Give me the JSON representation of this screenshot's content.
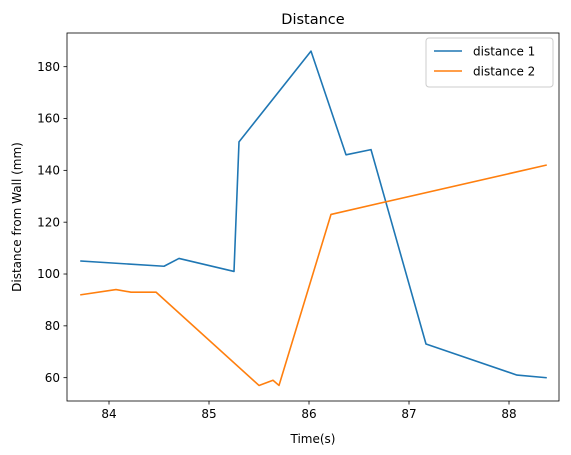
{
  "chart_data": {
    "type": "line",
    "title": "Distance",
    "xlabel": "Time(s)",
    "ylabel": "Distance from Wall (mm)",
    "xlim": [
      83.58,
      88.5
    ],
    "ylim": [
      51,
      193
    ],
    "xticks": [
      84,
      85,
      86,
      87,
      88
    ],
    "yticks": [
      60,
      80,
      100,
      120,
      140,
      160,
      180
    ],
    "grid": false,
    "legend_position": "top-right",
    "series": [
      {
        "name": "distance 1",
        "color": "#1f77b4",
        "points": [
          [
            83.72,
            105
          ],
          [
            84.55,
            103
          ],
          [
            84.7,
            106
          ],
          [
            85.25,
            101
          ],
          [
            85.3,
            151
          ],
          [
            86.02,
            186
          ],
          [
            86.37,
            146
          ],
          [
            86.62,
            148
          ],
          [
            87.17,
            73
          ],
          [
            88.08,
            61
          ],
          [
            88.37,
            60
          ]
        ]
      },
      {
        "name": "distance 2",
        "color": "#ff7f0e",
        "points": [
          [
            83.72,
            92
          ],
          [
            84.07,
            94
          ],
          [
            84.22,
            93
          ],
          [
            84.47,
            93
          ],
          [
            85.5,
            57
          ],
          [
            85.64,
            59
          ],
          [
            85.7,
            57
          ],
          [
            86.22,
            123
          ],
          [
            88.37,
            142
          ]
        ]
      }
    ]
  }
}
